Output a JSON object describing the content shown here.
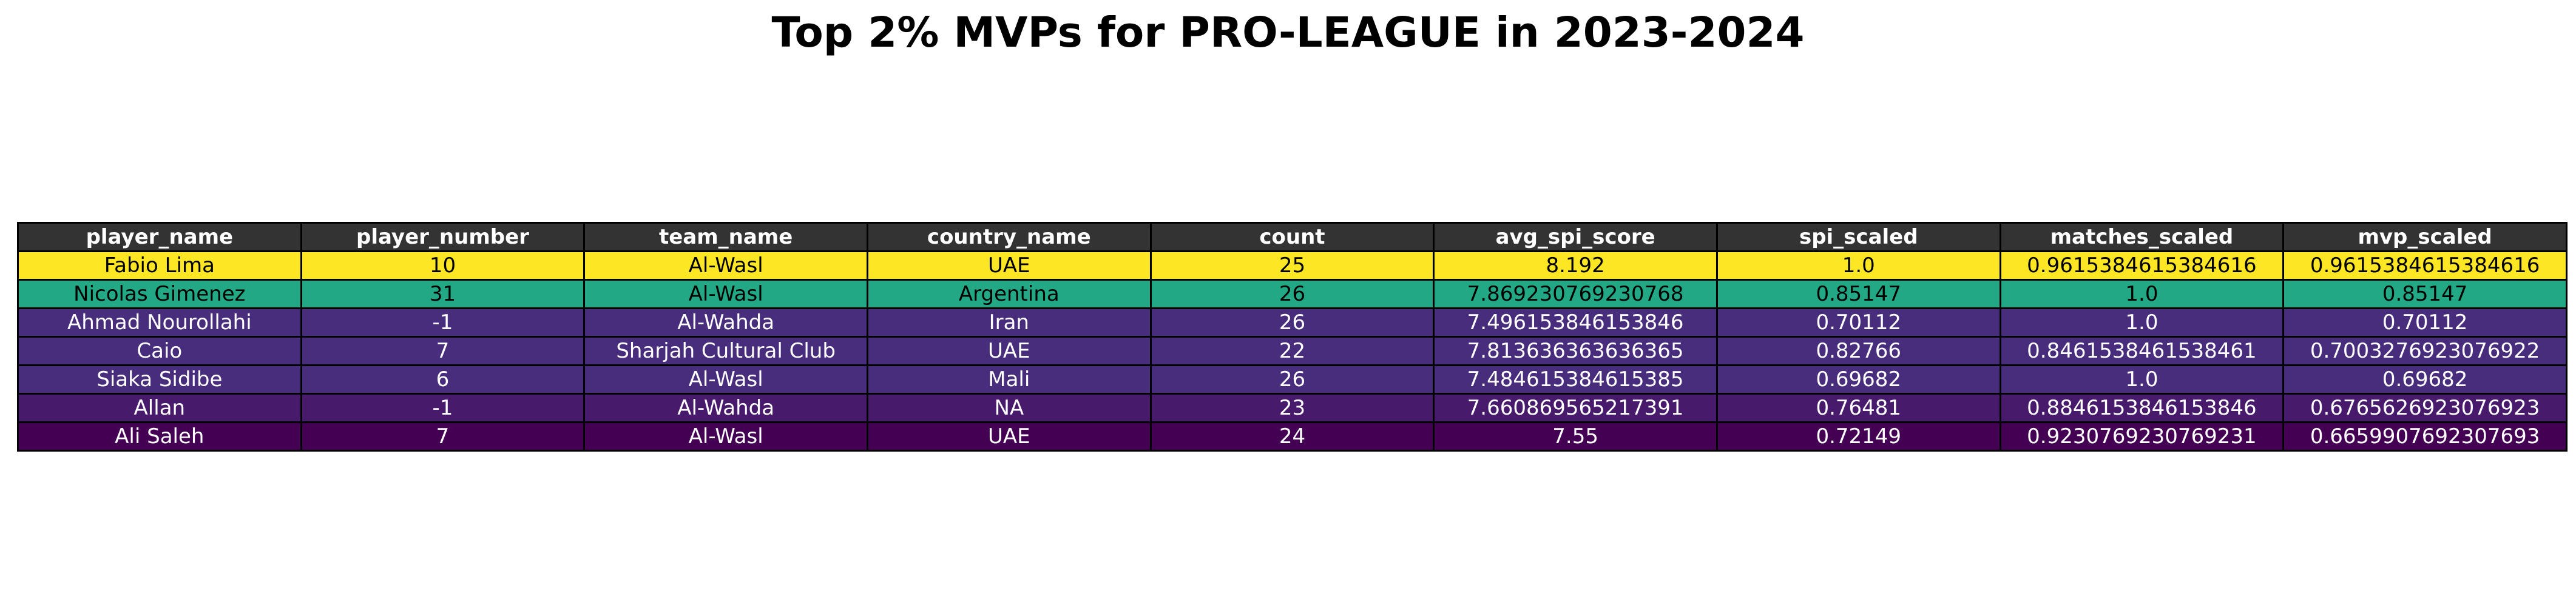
{
  "chart_data": {
    "type": "table",
    "title": "Top 2% MVPs for PRO-LEAGUE in 2023-2024",
    "columns": [
      "player_name",
      "player_number",
      "team_name",
      "country_name",
      "count",
      "avg_spi_score",
      "spi_scaled",
      "matches_scaled",
      "mvp_scaled"
    ],
    "rows": [
      {
        "cells": [
          "Fabio Lima",
          "10",
          "Al-Wasl",
          "UAE",
          "25",
          "8.192",
          "1.0",
          "0.9615384615384616",
          "0.9615384615384616"
        ],
        "bg": "#fde725",
        "fg": "#000000"
      },
      {
        "cells": [
          "Nicolas Gimenez",
          "31",
          "Al-Wasl",
          "Argentina",
          "26",
          "7.869230769230768",
          "0.85147",
          "1.0",
          "0.85147"
        ],
        "bg": "#22a884",
        "fg": "#000000"
      },
      {
        "cells": [
          "Ahmad Nourollahi",
          "-1",
          "Al-Wahda",
          "Iran",
          "26",
          "7.496153846153846",
          "0.70112",
          "1.0",
          "0.70112"
        ],
        "bg": "#472d7b",
        "fg": "#ffffff"
      },
      {
        "cells": [
          "Caio",
          "7",
          "Sharjah Cultural Club",
          "UAE",
          "22",
          "7.813636363636365",
          "0.82766",
          "0.8461538461538461",
          "0.7003276923076922"
        ],
        "bg": "#472d7b",
        "fg": "#ffffff"
      },
      {
        "cells": [
          "Siaka Sidibe",
          "6",
          "Al-Wasl",
          "Mali",
          "26",
          "7.484615384615385",
          "0.69682",
          "1.0",
          "0.69682"
        ],
        "bg": "#472d7b",
        "fg": "#ffffff"
      },
      {
        "cells": [
          "Allan",
          "-1",
          "Al-Wahda",
          "NA",
          "23",
          "7.660869565217391",
          "0.76481",
          "0.8846153846153846",
          "0.6765626923076923"
        ],
        "bg": "#481a6c",
        "fg": "#ffffff"
      },
      {
        "cells": [
          "Ali Saleh",
          "7",
          "Al-Wasl",
          "UAE",
          "24",
          "7.55",
          "0.72149",
          "0.9230769230769231",
          "0.6659907692307693"
        ],
        "bg": "#440154",
        "fg": "#ffffff"
      }
    ]
  }
}
